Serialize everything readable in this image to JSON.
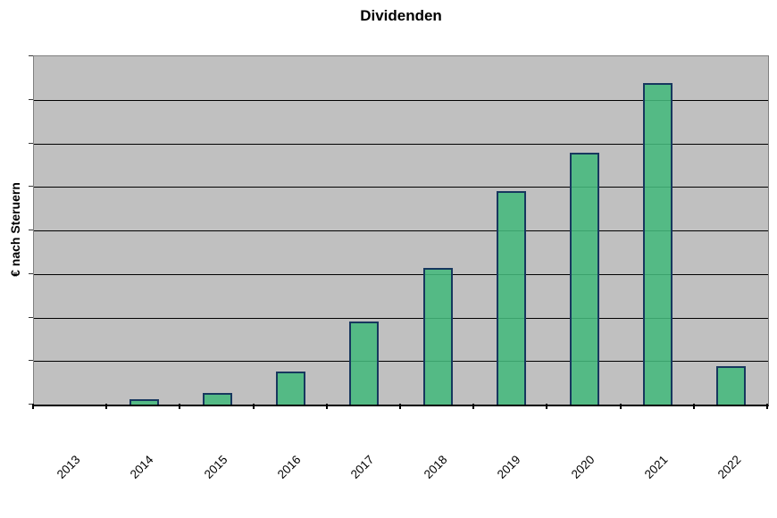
{
  "chart_title": "Dividenden",
  "chart_data": {
    "type": "bar",
    "title": "Dividenden",
    "xlabel": "",
    "ylabel": "€ nach Steruern",
    "categories": [
      "2013",
      "2014",
      "2015",
      "2016",
      "2017",
      "2018",
      "2019",
      "2020",
      "2021",
      "2022"
    ],
    "values": [
      0,
      0.12,
      0.27,
      0.75,
      1.9,
      3.13,
      4.9,
      5.78,
      7.38,
      0.89
    ],
    "ylim": [
      0,
      8
    ],
    "gridline_step": 1,
    "grid": true,
    "legend": false,
    "y_tick_labels_visible": false,
    "x_tick_label_rotation_deg": -45,
    "note": "y-axis has tick marks and gridlines but no numeric labels; values are relative estimates in gridline units",
    "colors": {
      "bar_fill": "#44b87c",
      "bar_border": "#17375e",
      "plot_background": "#c0c0c0",
      "gridline": "#000000",
      "plot_border": "#808080",
      "axis": "#000000",
      "text": "#000000",
      "page_background": "#ffffff"
    }
  }
}
